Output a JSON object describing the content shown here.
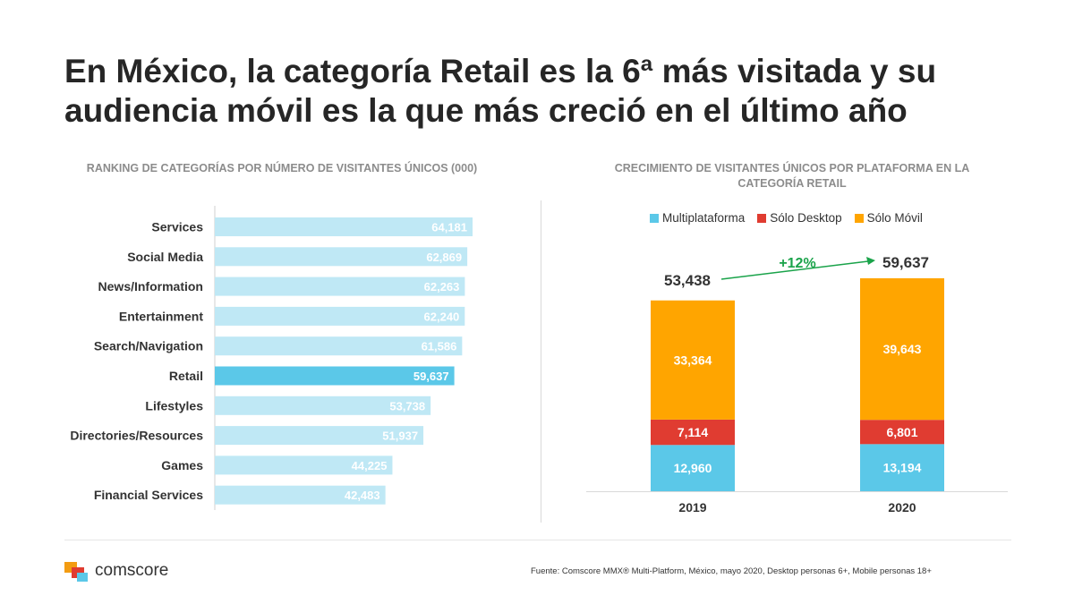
{
  "title": "En México, la categoría Retail es la 6ª más visitada y su audiencia móvil es la que más creció en el último año",
  "chart_data": [
    {
      "type": "bar",
      "orientation": "horizontal",
      "title": "RANKING DE CATEGORÍAS POR NÚMERO DE VISITANTES ÚNICOS (000)",
      "categories": [
        "Services",
        "Social Media",
        "News/Information",
        "Entertainment",
        "Search/Navigation",
        "Retail",
        "Lifestyles",
        "Directories/Resources",
        "Games",
        "Financial Services"
      ],
      "values": [
        64181,
        62869,
        62263,
        62240,
        61586,
        59637,
        53738,
        51937,
        44225,
        42483
      ],
      "labels": [
        "64,181",
        "62,869",
        "62,263",
        "62,240",
        "61,586",
        "59,637",
        "53,738",
        "51,937",
        "44,225",
        "42,483"
      ],
      "highlight": "Retail",
      "colors": {
        "default": "#bfe8f5",
        "highlight": "#5bc8e8"
      },
      "xlim": [
        0,
        80000
      ]
    },
    {
      "type": "bar",
      "stacked": true,
      "title": "CRECIMIENTO DE VISITANTES ÚNICOS POR PLATAFORMA EN LA CATEGORÍA RETAIL",
      "categories": [
        "2019",
        "2020"
      ],
      "series": [
        {
          "name": "Multiplataforma",
          "color": "#5bc8e8",
          "values": [
            12960,
            13194
          ],
          "labels": [
            "12,960",
            "13,194"
          ]
        },
        {
          "name": "Sólo Desktop",
          "color": "#e03c31",
          "values": [
            7114,
            6801
          ],
          "labels": [
            "7,114",
            "6,801"
          ]
        },
        {
          "name": "Sólo Móvil",
          "color": "#ffa500",
          "values": [
            33364,
            39643
          ],
          "labels": [
            "33,364",
            "39,643"
          ]
        }
      ],
      "totals": [
        "53,438",
        "59,637"
      ],
      "total_values": [
        53438,
        59637
      ],
      "growth_label": "+12%",
      "growth_color": "#1aa34a",
      "legend_position": "top",
      "ylim": [
        0,
        60000
      ]
    }
  ],
  "footer": {
    "logo_text": "comscore",
    "source": "Fuente: Comscore MMX® Multi-Platform, México, mayo 2020, Desktop personas 6+, Mobile personas 18+"
  }
}
